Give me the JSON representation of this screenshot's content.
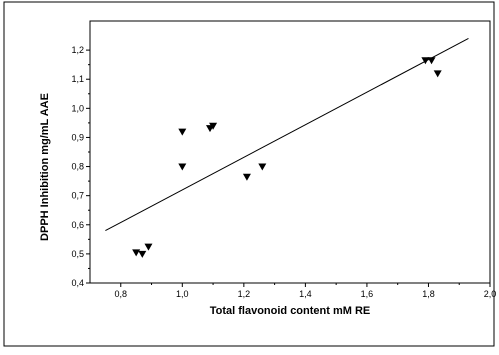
{
  "chart_data": {
    "type": "scatter",
    "xlabel": "Total flavonoid content mM RE",
    "ylabel": "DPPH Inhibition mg/mL AAE",
    "xlim": [
      0.7,
      2.0
    ],
    "ylim": [
      0.4,
      1.3
    ],
    "x_ticks": [
      "0,8",
      "1,0",
      "1,2",
      "1,4",
      "1,6",
      "1,8",
      "2,0"
    ],
    "x_tick_values": [
      0.8,
      1.0,
      1.2,
      1.4,
      1.6,
      1.8,
      2.0
    ],
    "y_ticks": [
      "0,4",
      "0,5",
      "0,6",
      "0,7",
      "0,8",
      "0,9",
      "1,0",
      "1,1",
      "1,2"
    ],
    "y_tick_values": [
      0.4,
      0.5,
      0.6,
      0.7,
      0.8,
      0.9,
      1.0,
      1.1,
      1.2
    ],
    "marker": "down-triangle",
    "grid": false,
    "points": [
      {
        "x": 0.85,
        "y": 0.505
      },
      {
        "x": 0.87,
        "y": 0.5
      },
      {
        "x": 0.89,
        "y": 0.525
      },
      {
        "x": 1.0,
        "y": 0.92
      },
      {
        "x": 1.0,
        "y": 0.8
      },
      {
        "x": 1.09,
        "y": 0.932
      },
      {
        "x": 1.1,
        "y": 0.94
      },
      {
        "x": 1.21,
        "y": 0.765
      },
      {
        "x": 1.26,
        "y": 0.8
      },
      {
        "x": 1.79,
        "y": 1.165
      },
      {
        "x": 1.81,
        "y": 1.165
      },
      {
        "x": 1.83,
        "y": 1.12
      }
    ],
    "regression_line": {
      "x": [
        0.75,
        1.93
      ],
      "y": [
        0.58,
        1.24
      ]
    }
  }
}
